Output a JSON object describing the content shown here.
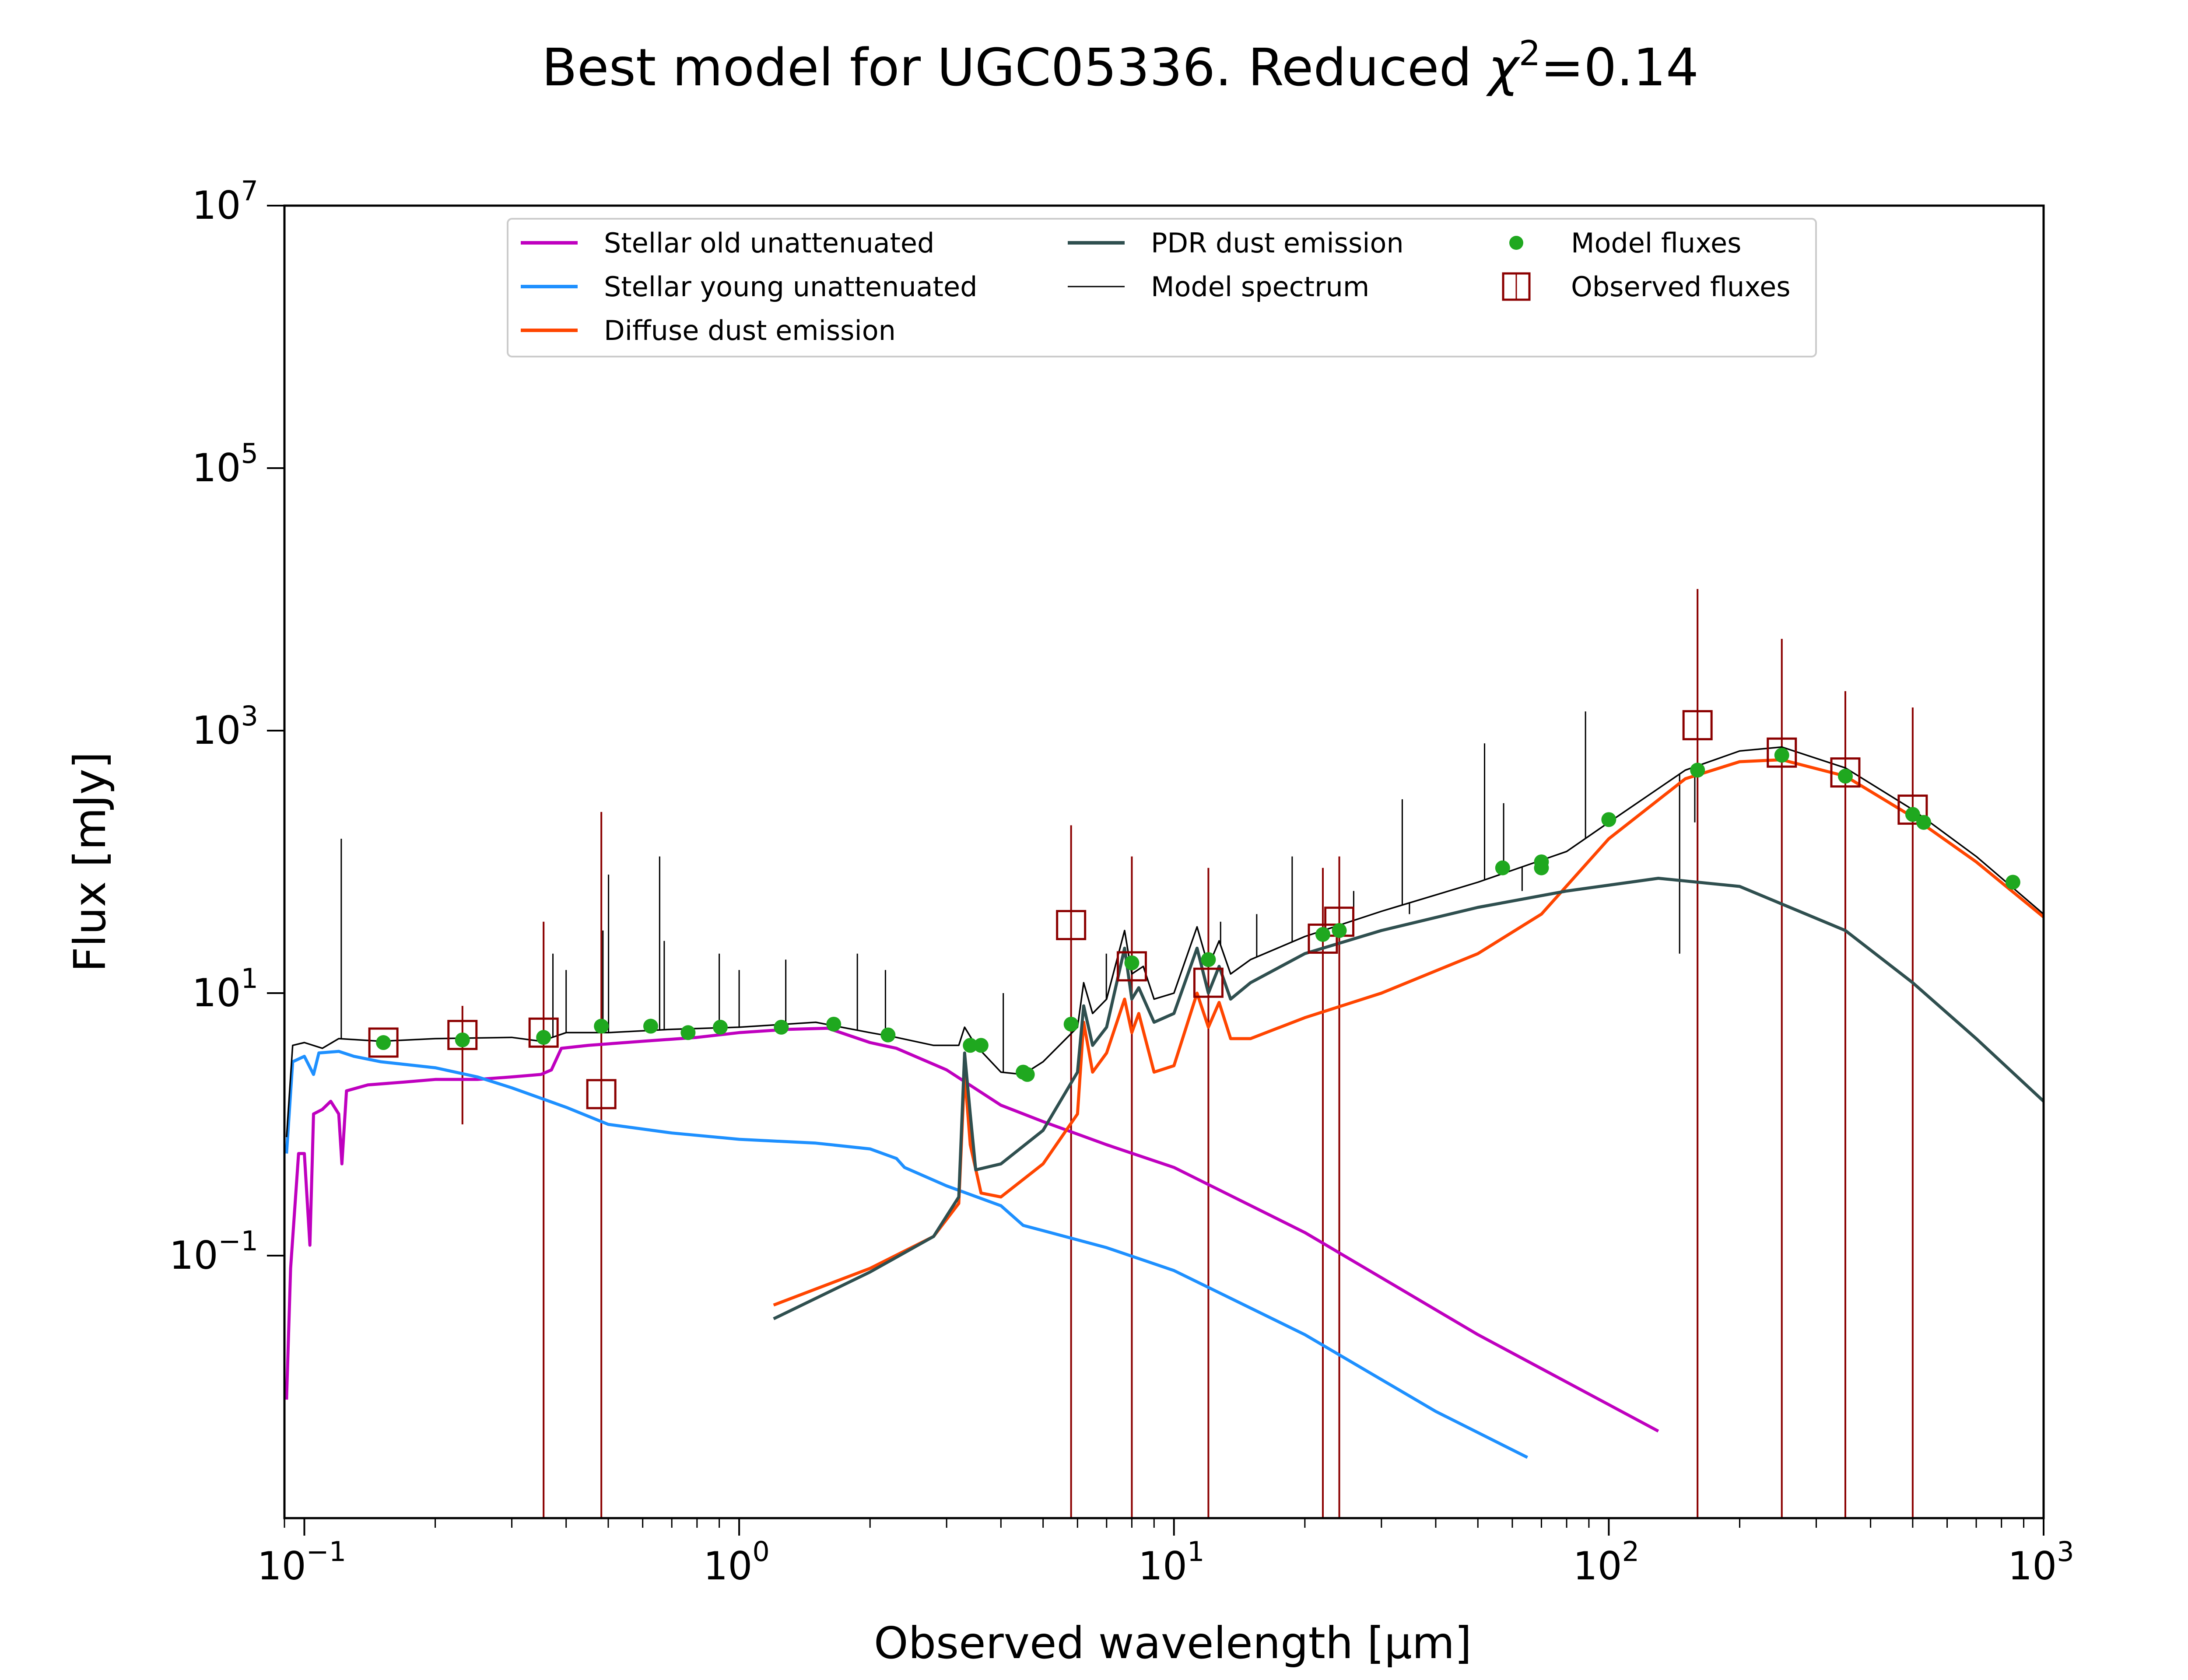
{
  "chart_data": {
    "type": "line",
    "title": "Best model for UGC05336. Reduced χ²=0.14",
    "title_parts": {
      "prefix": "Best model for UGC05336. Reduced ",
      "chi": "χ",
      "sup": "2",
      "suffix": "=0.14"
    },
    "xlabel": "Observed wavelength [μm]",
    "ylabel": "Flux [mJy]",
    "x_scale": "log",
    "y_scale": "log",
    "xlim": [
      0.09,
      1000
    ],
    "ylim": [
      0.001,
      10000000
    ],
    "x_ticks": [
      {
        "value": 0.1,
        "base": "10",
        "exp": "−1"
      },
      {
        "value": 1,
        "base": "10",
        "exp": "0"
      },
      {
        "value": 10,
        "base": "10",
        "exp": "1"
      },
      {
        "value": 100,
        "base": "10",
        "exp": "2"
      },
      {
        "value": 1000,
        "base": "10",
        "exp": "3"
      }
    ],
    "y_ticks": [
      {
        "value": 0.1,
        "base": "10",
        "exp": "−1"
      },
      {
        "value": 10,
        "base": "10",
        "exp": "1"
      },
      {
        "value": 1000,
        "base": "10",
        "exp": "3"
      },
      {
        "value": 100000,
        "base": "10",
        "exp": "5"
      },
      {
        "value": 10000000,
        "base": "10",
        "exp": "7"
      }
    ],
    "grid": false,
    "legend": {
      "position": "top-center",
      "entries": [
        {
          "label": "Stellar old unattenuated",
          "kind": "line",
          "color": "#bf00bf"
        },
        {
          "label": "Stellar young unattenuated",
          "kind": "line",
          "color": "#1e90ff"
        },
        {
          "label": "Diffuse dust emission",
          "kind": "line",
          "color": "#ff4500"
        },
        {
          "label": "PDR dust emission",
          "kind": "line",
          "color": "#2f4f4f"
        },
        {
          "label": "Model spectrum",
          "kind": "thinline",
          "color": "#000000"
        },
        {
          "label": "Model fluxes",
          "kind": "dot",
          "color": "#1fa81f"
        },
        {
          "label": "Observed fluxes",
          "kind": "square",
          "color": "#8b0000"
        }
      ]
    },
    "series": [
      {
        "name": "Stellar old unattenuated",
        "color": "#bf00bf",
        "points": [
          [
            0.091,
            0.008
          ],
          [
            0.093,
            0.08
          ],
          [
            0.097,
            0.6
          ],
          [
            0.1,
            0.6
          ],
          [
            0.103,
            0.12
          ],
          [
            0.105,
            1.2
          ],
          [
            0.11,
            1.3
          ],
          [
            0.115,
            1.5
          ],
          [
            0.12,
            1.2
          ],
          [
            0.122,
            0.5
          ],
          [
            0.125,
            1.8
          ],
          [
            0.14,
            2.0
          ],
          [
            0.17,
            2.1
          ],
          [
            0.2,
            2.2
          ],
          [
            0.25,
            2.2
          ],
          [
            0.3,
            2.3
          ],
          [
            0.35,
            2.4
          ],
          [
            0.37,
            2.6
          ],
          [
            0.39,
            3.8
          ],
          [
            0.45,
            4.0
          ],
          [
            0.6,
            4.3
          ],
          [
            0.8,
            4.6
          ],
          [
            1.0,
            5.0
          ],
          [
            1.3,
            5.3
          ],
          [
            1.6,
            5.4
          ],
          [
            2.0,
            4.2
          ],
          [
            2.3,
            3.8
          ],
          [
            3.0,
            2.6
          ],
          [
            4.0,
            1.4
          ],
          [
            5.0,
            1.05
          ],
          [
            7.0,
            0.7
          ],
          [
            10.0,
            0.47
          ],
          [
            20.0,
            0.15
          ],
          [
            50.0,
            0.025
          ],
          [
            130.0,
            0.0046
          ]
        ]
      },
      {
        "name": "Stellar young unattenuated",
        "color": "#1e90ff",
        "points": [
          [
            0.091,
            0.6
          ],
          [
            0.094,
            3.0
          ],
          [
            0.1,
            3.3
          ],
          [
            0.105,
            2.4
          ],
          [
            0.108,
            3.5
          ],
          [
            0.12,
            3.6
          ],
          [
            0.13,
            3.3
          ],
          [
            0.15,
            3.0
          ],
          [
            0.2,
            2.7
          ],
          [
            0.25,
            2.3
          ],
          [
            0.3,
            1.9
          ],
          [
            0.4,
            1.35
          ],
          [
            0.5,
            1.0
          ],
          [
            0.7,
            0.86
          ],
          [
            1.0,
            0.77
          ],
          [
            1.5,
            0.72
          ],
          [
            2.0,
            0.65
          ],
          [
            2.3,
            0.55
          ],
          [
            2.4,
            0.47
          ],
          [
            3.0,
            0.34
          ],
          [
            4.0,
            0.24
          ],
          [
            4.5,
            0.17
          ],
          [
            5.0,
            0.155
          ],
          [
            7.0,
            0.115
          ],
          [
            10.0,
            0.077
          ],
          [
            20.0,
            0.025
          ],
          [
            40.0,
            0.0065
          ],
          [
            65.0,
            0.0029
          ]
        ]
      },
      {
        "name": "Diffuse dust emission",
        "color": "#ff4500",
        "points": [
          [
            1.2,
            0.042
          ],
          [
            2.0,
            0.08
          ],
          [
            2.8,
            0.14
          ],
          [
            3.2,
            0.25
          ],
          [
            3.3,
            2.5
          ],
          [
            3.4,
            0.7
          ],
          [
            3.6,
            0.3
          ],
          [
            4.0,
            0.28
          ],
          [
            5.0,
            0.5
          ],
          [
            6.0,
            1.2
          ],
          [
            6.2,
            6.0
          ],
          [
            6.5,
            2.5
          ],
          [
            7.0,
            3.5
          ],
          [
            7.7,
            9.0
          ],
          [
            8.0,
            5.0
          ],
          [
            8.3,
            7.0
          ],
          [
            9.0,
            2.5
          ],
          [
            10.0,
            2.8
          ],
          [
            11.3,
            10.0
          ],
          [
            12.0,
            5.5
          ],
          [
            12.7,
            8.5
          ],
          [
            13.5,
            4.5
          ],
          [
            15.0,
            4.5
          ],
          [
            20.0,
            6.5
          ],
          [
            30.0,
            10.0
          ],
          [
            50.0,
            20.0
          ],
          [
            70.0,
            40.0
          ],
          [
            100.0,
            150.0
          ],
          [
            150.0,
            430.0
          ],
          [
            200.0,
            580.0
          ],
          [
            250.0,
            600.0
          ],
          [
            350.0,
            450.0
          ],
          [
            500.0,
            220.0
          ],
          [
            700.0,
            100.0
          ],
          [
            1000.0,
            38.0
          ]
        ]
      },
      {
        "name": "PDR dust emission",
        "color": "#2f4f4f",
        "points": [
          [
            1.2,
            0.033
          ],
          [
            2.0,
            0.075
          ],
          [
            2.8,
            0.14
          ],
          [
            3.2,
            0.28
          ],
          [
            3.3,
            3.5
          ],
          [
            3.4,
            1.2
          ],
          [
            3.5,
            0.45
          ],
          [
            4.0,
            0.5
          ],
          [
            5.0,
            0.9
          ],
          [
            6.0,
            2.5
          ],
          [
            6.2,
            8.0
          ],
          [
            6.5,
            4.0
          ],
          [
            7.0,
            5.5
          ],
          [
            7.7,
            22.0
          ],
          [
            8.0,
            9.0
          ],
          [
            8.3,
            11.0
          ],
          [
            9.0,
            6.0
          ],
          [
            10.0,
            7.0
          ],
          [
            11.3,
            22.0
          ],
          [
            12.0,
            10.0
          ],
          [
            12.7,
            16.0
          ],
          [
            13.5,
            9.0
          ],
          [
            15.0,
            12.0
          ],
          [
            20.0,
            20.0
          ],
          [
            30.0,
            30.0
          ],
          [
            50.0,
            45.0
          ],
          [
            80.0,
            60.0
          ],
          [
            130.0,
            75.0
          ],
          [
            200.0,
            65.0
          ],
          [
            350.0,
            30.0
          ],
          [
            500.0,
            12.0
          ],
          [
            700.0,
            4.5
          ],
          [
            1000.0,
            1.5
          ]
        ]
      },
      {
        "name": "Model spectrum",
        "color": "#000000",
        "points": [
          [
            0.091,
            0.8
          ],
          [
            0.094,
            4.0
          ],
          [
            0.1,
            4.2
          ],
          [
            0.11,
            3.8
          ],
          [
            0.12,
            4.5
          ],
          [
            0.15,
            4.3
          ],
          [
            0.2,
            4.5
          ],
          [
            0.3,
            4.6
          ],
          [
            0.35,
            4.3
          ],
          [
            0.4,
            5.0
          ],
          [
            0.5,
            5.0
          ],
          [
            0.7,
            5.3
          ],
          [
            1.0,
            5.5
          ],
          [
            1.5,
            6.0
          ],
          [
            2.0,
            5.0
          ],
          [
            2.3,
            4.6
          ],
          [
            2.8,
            4.0
          ],
          [
            3.2,
            4.0
          ],
          [
            3.3,
            5.5
          ],
          [
            3.5,
            4.0
          ],
          [
            4.0,
            2.5
          ],
          [
            4.5,
            2.4
          ],
          [
            5.0,
            3.0
          ],
          [
            6.0,
            5.5
          ],
          [
            6.2,
            12.0
          ],
          [
            6.5,
            7.0
          ],
          [
            7.0,
            9.0
          ],
          [
            7.7,
            30.0
          ],
          [
            8.0,
            14.0
          ],
          [
            8.5,
            16.0
          ],
          [
            9.0,
            9.0
          ],
          [
            10.0,
            10.0
          ],
          [
            11.3,
            32.0
          ],
          [
            12.0,
            16.0
          ],
          [
            12.7,
            25.0
          ],
          [
            13.5,
            14.0
          ],
          [
            15.0,
            18.0
          ],
          [
            20.0,
            27.0
          ],
          [
            30.0,
            42.0
          ],
          [
            50.0,
            70.0
          ],
          [
            80.0,
            120.0
          ],
          [
            100.0,
            200.0
          ],
          [
            150.0,
            500.0
          ],
          [
            200.0,
            700.0
          ],
          [
            250.0,
            750.0
          ],
          [
            350.0,
            520.0
          ],
          [
            500.0,
            250.0
          ],
          [
            700.0,
            110.0
          ],
          [
            1000.0,
            40.0
          ]
        ]
      }
    ],
    "emission_lines": [
      [
        0.1216,
        150
      ],
      [
        0.373,
        20
      ],
      [
        0.4,
        15
      ],
      [
        0.4861,
        30
      ],
      [
        0.5007,
        80
      ],
      [
        0.6563,
        110
      ],
      [
        0.6725,
        25
      ],
      [
        0.9,
        20
      ],
      [
        1.0,
        15
      ],
      [
        1.28,
        18
      ],
      [
        1.87,
        20
      ],
      [
        2.17,
        15
      ],
      [
        4.05,
        10
      ],
      [
        6.99,
        20
      ],
      [
        12.8,
        35
      ],
      [
        15.5,
        40
      ],
      [
        18.7,
        110
      ],
      [
        25.9,
        60
      ],
      [
        33.5,
        300
      ],
      [
        34.8,
        40
      ],
      [
        51.8,
        800
      ],
      [
        57.3,
        280
      ],
      [
        63.2,
        60
      ],
      [
        88.4,
        1400
      ],
      [
        145.5,
        20
      ],
      [
        157.7,
        200
      ]
    ],
    "model_fluxes": [
      [
        0.152,
        4.2
      ],
      [
        0.231,
        4.4
      ],
      [
        0.355,
        4.6
      ],
      [
        0.482,
        5.6
      ],
      [
        0.626,
        5.6
      ],
      [
        0.763,
        5.0
      ],
      [
        0.905,
        5.5
      ],
      [
        1.25,
        5.5
      ],
      [
        1.65,
        5.8
      ],
      [
        2.2,
        4.8
      ],
      [
        3.4,
        4.0
      ],
      [
        3.6,
        4.0
      ],
      [
        4.5,
        2.5
      ],
      [
        4.6,
        2.4
      ],
      [
        5.8,
        5.8
      ],
      [
        8.0,
        17.0
      ],
      [
        12.0,
        18.0
      ],
      [
        22.0,
        28.0
      ],
      [
        24.0,
        30.0
      ],
      [
        57.0,
        90.0
      ],
      [
        70.0,
        90.0
      ],
      [
        70.0,
        100.0
      ],
      [
        100.0,
        210.0
      ],
      [
        160.0,
        500.0
      ],
      [
        250.0,
        650.0
      ],
      [
        350.0,
        450.0
      ],
      [
        500.0,
        230.0
      ],
      [
        530.0,
        200.0
      ],
      [
        850.0,
        70.0
      ]
    ],
    "observed_fluxes": [
      {
        "x": 0.152,
        "y": 4.2,
        "ylo": 4.2,
        "yhi": 4.2
      },
      {
        "x": 0.231,
        "y": 4.8,
        "ylo": 1.0,
        "yhi": 8.0
      },
      {
        "x": 0.355,
        "y": 5.0,
        "ylo": 0.001,
        "yhi": 35.0
      },
      {
        "x": 0.482,
        "y": 1.7,
        "ylo": 0.001,
        "yhi": 240.0
      },
      {
        "x": 5.8,
        "y": 33.0,
        "ylo": 0.001,
        "yhi": 190.0
      },
      {
        "x": 8.0,
        "y": 16.0,
        "ylo": 0.001,
        "yhi": 110.0
      },
      {
        "x": 12.0,
        "y": 12.0,
        "ylo": 0.001,
        "yhi": 90.0
      },
      {
        "x": 22.0,
        "y": 26.0,
        "ylo": 0.001,
        "yhi": 90.0
      },
      {
        "x": 24.0,
        "y": 35.0,
        "ylo": 0.001,
        "yhi": 110.0
      },
      {
        "x": 160.0,
        "y": 1100.0,
        "ylo": 0.001,
        "yhi": 12000.0
      },
      {
        "x": 250.0,
        "y": 680.0,
        "ylo": 0.001,
        "yhi": 5000.0
      },
      {
        "x": 350.0,
        "y": 480.0,
        "ylo": 0.001,
        "yhi": 2000.0
      },
      {
        "x": 500.0,
        "y": 250.0,
        "ylo": 0.001,
        "yhi": 1500.0
      }
    ]
  }
}
